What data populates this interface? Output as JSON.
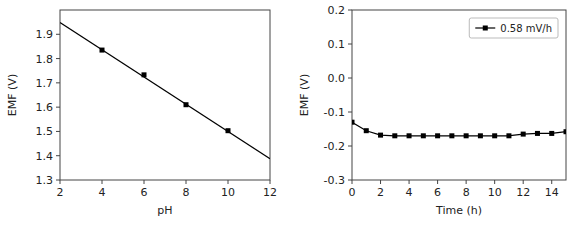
{
  "chart_data": [
    {
      "type": "scatter",
      "xlabel": "pH",
      "ylabel": "EMF (V)",
      "xlim": [
        2,
        12
      ],
      "ylim": [
        1.3,
        2.0
      ],
      "xticks": [
        2,
        4,
        6,
        8,
        10,
        12
      ],
      "yticks": [
        1.3,
        1.4,
        1.5,
        1.6,
        1.7,
        1.8,
        1.9
      ],
      "series": [
        {
          "type": "line",
          "color": "#000000",
          "x": [
            2,
            12
          ],
          "values": [
            1.948,
            1.388
          ]
        },
        {
          "type": "scatter",
          "color": "#000000",
          "marker": "square",
          "x": [
            4,
            6,
            8,
            10
          ],
          "values": [
            1.835,
            1.733,
            1.61,
            1.503
          ]
        }
      ]
    },
    {
      "type": "line",
      "xlabel": "Time (h)",
      "ylabel": "EMF (V)",
      "xlim": [
        0,
        15
      ],
      "ylim": [
        -0.3,
        0.2
      ],
      "xticks": [
        0,
        2,
        4,
        6,
        8,
        10,
        12,
        14
      ],
      "yticks": [
        -0.3,
        -0.2,
        -0.1,
        {
          "value": 0,
          "label": "0.0"
        },
        0.1,
        0.2
      ],
      "legend": "upper right",
      "x": [
        0,
        1,
        2,
        3,
        4,
        5,
        6,
        7,
        8,
        9,
        10,
        11,
        12,
        13,
        14,
        15
      ],
      "series": [
        {
          "name": "0.58 mV/h",
          "color": "#000000",
          "marker": "square",
          "values": [
            -0.13,
            -0.155,
            -0.168,
            -0.17,
            -0.17,
            -0.17,
            -0.17,
            -0.17,
            -0.17,
            -0.17,
            -0.17,
            -0.17,
            -0.165,
            -0.163,
            -0.163,
            -0.158
          ]
        }
      ]
    }
  ]
}
